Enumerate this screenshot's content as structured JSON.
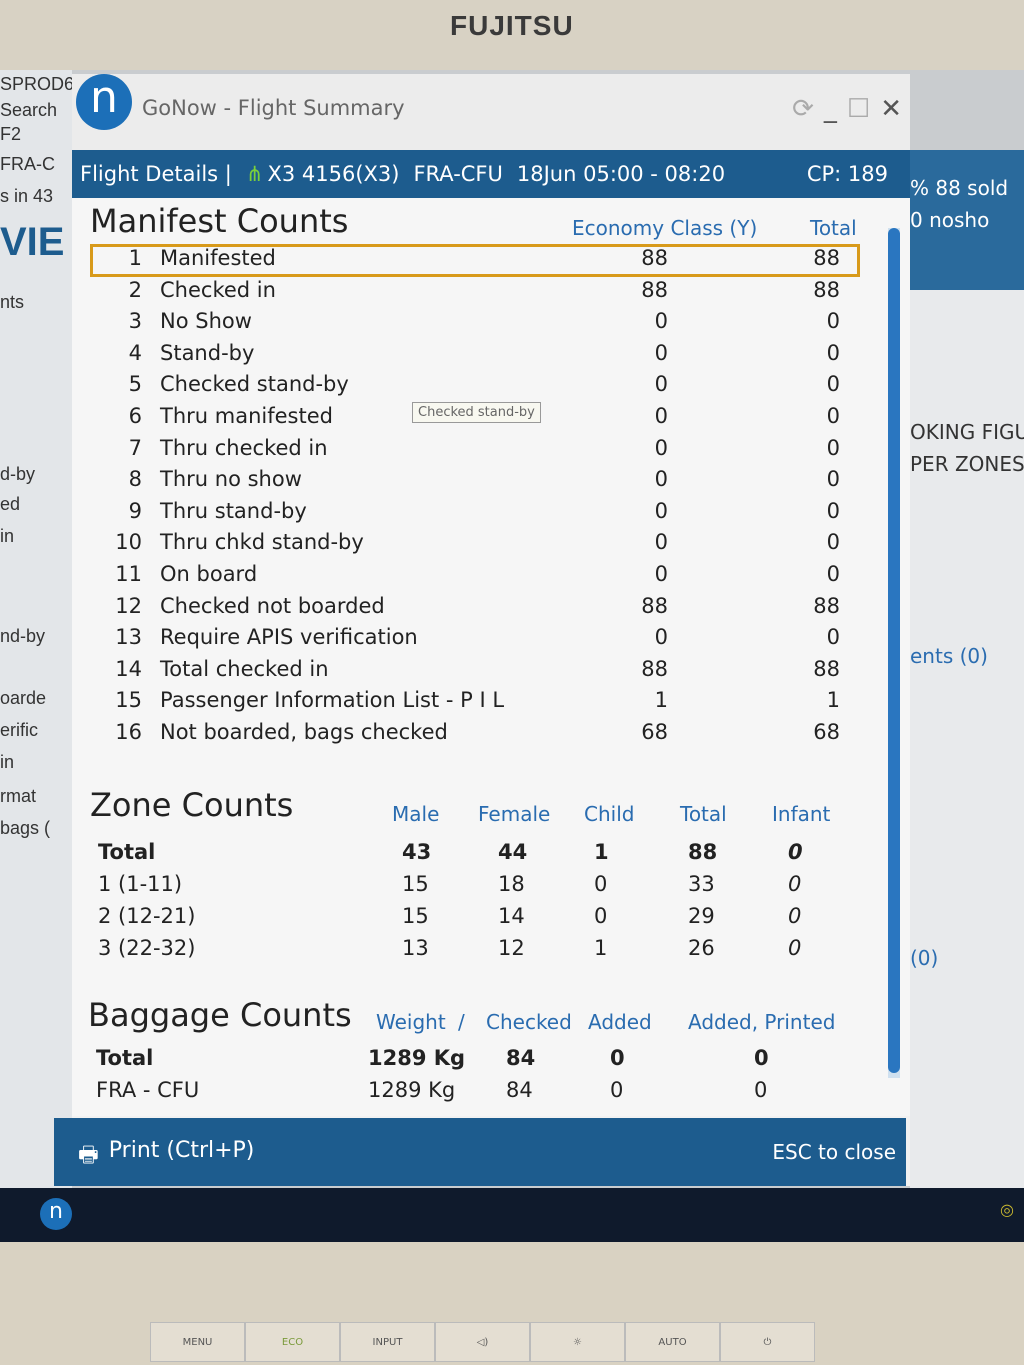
{
  "monitor": {
    "brand": "FUJITSU",
    "buttons": [
      "MENU",
      "ECO",
      "INPUT",
      "◁)",
      "☼",
      "AUTO",
      "⏻"
    ]
  },
  "background_left": [
    "SPROD6",
    "Search",
    "F2",
    "FRA-C",
    "s in 43",
    "VIE",
    "nts",
    "d-by",
    "ed",
    "in",
    "nd-by",
    "oarde",
    "erific",
    "in",
    "rmat",
    "bags ("
  ],
  "background_right": [
    "% 88 sold",
    "0 nosho",
    "OKING FIGU",
    "PER ZONES",
    "ents (0)",
    "(0)"
  ],
  "window": {
    "title": "GoNow - Flight Summary",
    "logo": "n"
  },
  "header": {
    "label": "Flight Details |",
    "flight": "X3 4156(X3)",
    "route": "FRA-CFU",
    "schedule": "18Jun 05:00 - 08:20",
    "cp": "CP: 189"
  },
  "manifest": {
    "title": "Manifest Counts",
    "col_economy": "Economy Class (Y)",
    "col_total": "Total",
    "tooltip": "Checked stand-by",
    "rows": [
      {
        "n": "1",
        "label": "Manifested",
        "y": "88",
        "t": "88"
      },
      {
        "n": "2",
        "label": "Checked in",
        "y": "88",
        "t": "88"
      },
      {
        "n": "3",
        "label": "No Show",
        "y": "0",
        "t": "0"
      },
      {
        "n": "4",
        "label": "Stand-by",
        "y": "0",
        "t": "0"
      },
      {
        "n": "5",
        "label": "Checked stand-by",
        "y": "0",
        "t": "0"
      },
      {
        "n": "6",
        "label": "Thru manifested",
        "y": "0",
        "t": "0"
      },
      {
        "n": "7",
        "label": "Thru checked in",
        "y": "0",
        "t": "0"
      },
      {
        "n": "8",
        "label": "Thru no show",
        "y": "0",
        "t": "0"
      },
      {
        "n": "9",
        "label": "Thru stand-by",
        "y": "0",
        "t": "0"
      },
      {
        "n": "10",
        "label": "Thru chkd stand-by",
        "y": "0",
        "t": "0"
      },
      {
        "n": "11",
        "label": "On board",
        "y": "0",
        "t": "0"
      },
      {
        "n": "12",
        "label": "Checked not boarded",
        "y": "88",
        "t": "88"
      },
      {
        "n": "13",
        "label": "Require APIS verification",
        "y": "0",
        "t": "0"
      },
      {
        "n": "14",
        "label": "Total checked in",
        "y": "88",
        "t": "88"
      },
      {
        "n": "15",
        "label": "Passenger Information List - P I L",
        "y": "1",
        "t": "1"
      },
      {
        "n": "16",
        "label": "Not boarded, bags checked",
        "y": "68",
        "t": "68"
      }
    ]
  },
  "zones": {
    "title": "Zone Counts",
    "headers": [
      "Male",
      "Female",
      "Child",
      "Total",
      "Infant"
    ],
    "rows": [
      [
        "Total",
        "43",
        "44",
        "1",
        "88",
        "0"
      ],
      [
        "1 (1-11)",
        "15",
        "18",
        "0",
        "33",
        "0"
      ],
      [
        "2 (12-21)",
        "15",
        "14",
        "0",
        "29",
        "0"
      ],
      [
        "3 (22-32)",
        "13",
        "12",
        "1",
        "26",
        "0"
      ]
    ]
  },
  "baggage": {
    "title": "Baggage Counts",
    "headers": [
      "Weight",
      "/",
      "Checked",
      "Added",
      "Added, Printed"
    ],
    "rows": [
      [
        "Total",
        "1289 Kg",
        "84",
        "0",
        "0"
      ],
      [
        "FRA - CFU",
        "1289 Kg",
        "84",
        "0",
        "0"
      ]
    ]
  },
  "footer": {
    "print": "Print (Ctrl+P)",
    "close": "ESC to close"
  },
  "colors": {
    "accent": "#1d5c8e",
    "highlight": "#d89a1a",
    "header_text": "#2a6cb0"
  }
}
